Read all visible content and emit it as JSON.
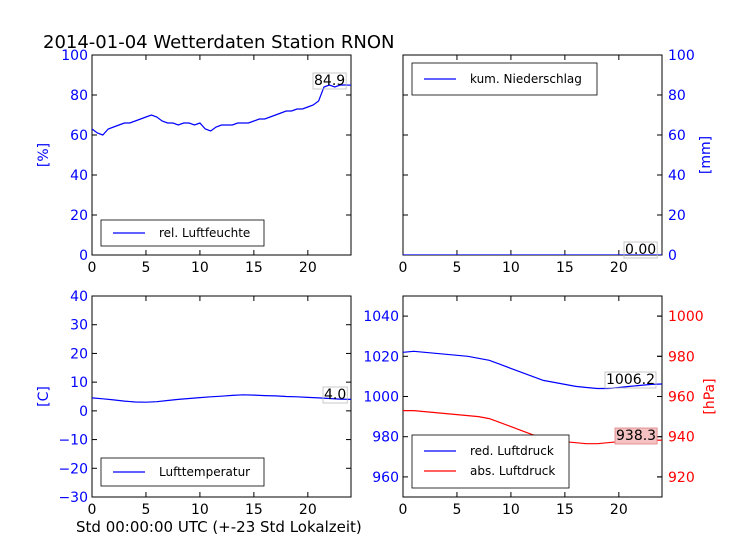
{
  "figure_title": "2014-01-04 Wetterdaten Station RNON",
  "xlabel_bottom": "Std 00:00:00 UTC (+-23 Std Lokalzeit)",
  "colors": {
    "blue": "#0000ff",
    "red": "#ff0000",
    "black": "#000000"
  },
  "chart_data": [
    {
      "id": "humidity",
      "type": "line",
      "xlim": [
        0,
        24
      ],
      "ylim": [
        0,
        100
      ],
      "xticks": [
        0,
        5,
        10,
        15,
        20
      ],
      "yticks": [
        0,
        20,
        40,
        60,
        80,
        100
      ],
      "ylabel": "[%]",
      "ylabel_side": "left",
      "legend_placement": "lower-left",
      "series": [
        {
          "name": "rel. Luftfeuchte",
          "color": "#0000ff",
          "x": [
            0,
            0.5,
            1,
            1.5,
            2,
            2.5,
            3,
            3.5,
            4,
            4.5,
            5,
            5.5,
            6,
            6.5,
            7,
            7.5,
            8,
            8.5,
            9,
            9.5,
            10,
            10.5,
            11,
            11.5,
            12,
            12.5,
            13,
            13.5,
            14,
            14.5,
            15,
            15.5,
            16,
            16.5,
            17,
            17.5,
            18,
            18.5,
            19,
            19.5,
            20,
            20.5,
            21,
            21.5,
            22,
            22.5,
            23,
            23.5,
            24
          ],
          "y": [
            63,
            61,
            60,
            63,
            64,
            65,
            66,
            66,
            67,
            68,
            69,
            70,
            69,
            67,
            66,
            66,
            65,
            66,
            66,
            65,
            66,
            63,
            62,
            64,
            65,
            65,
            65,
            66,
            66,
            66,
            67,
            68,
            68,
            69,
            70,
            71,
            72,
            72,
            73,
            73,
            74,
            75,
            77,
            84,
            85,
            84,
            85,
            85,
            84.9
          ]
        }
      ],
      "annotation": "84.9"
    },
    {
      "id": "precipitation",
      "type": "line",
      "xlim": [
        0,
        24
      ],
      "ylim": [
        0,
        100
      ],
      "xticks": [
        0,
        5,
        10,
        15,
        20
      ],
      "yticks": [
        0,
        20,
        40,
        60,
        80,
        100
      ],
      "ylabel": "[mm]",
      "ylabel_side": "right",
      "legend_placement": "upper-left",
      "series": [
        {
          "name": "kum. Niederschlag",
          "color": "#0000ff",
          "x": [
            0,
            24
          ],
          "y": [
            0,
            0
          ]
        }
      ],
      "annotation": "0.00"
    },
    {
      "id": "temperature",
      "type": "line",
      "xlim": [
        0,
        24
      ],
      "ylim": [
        -30,
        40
      ],
      "xticks": [
        0,
        5,
        10,
        15,
        20
      ],
      "yticks": [
        -30,
        -20,
        -10,
        0,
        10,
        20,
        30,
        40
      ],
      "ylabel": "[C]",
      "ylabel_side": "left",
      "legend_placement": "lower-left",
      "series": [
        {
          "name": "Lufttemperatur",
          "color": "#0000ff",
          "x": [
            0,
            1,
            2,
            3,
            4,
            5,
            6,
            7,
            8,
            9,
            10,
            11,
            12,
            13,
            14,
            15,
            16,
            17,
            18,
            19,
            20,
            21,
            22,
            23,
            24
          ],
          "y": [
            4.5,
            4.2,
            3.8,
            3.4,
            3.1,
            3.0,
            3.2,
            3.6,
            4.0,
            4.3,
            4.6,
            4.9,
            5.1,
            5.4,
            5.6,
            5.5,
            5.3,
            5.2,
            5.0,
            4.9,
            4.7,
            4.5,
            4.3,
            4.1,
            4.0
          ]
        }
      ],
      "annotation": "4.0"
    },
    {
      "id": "pressure",
      "type": "line",
      "xlim": [
        0,
        24
      ],
      "ylim": [
        950,
        1050
      ],
      "ylim_right": [
        910,
        1010
      ],
      "xticks": [
        0,
        5,
        10,
        15,
        20
      ],
      "yticks": [
        960,
        980,
        1000,
        1020,
        1040
      ],
      "yticks_right": [
        920,
        940,
        960,
        980,
        1000
      ],
      "ylabel_right": "[hPa]",
      "legend_placement": "lower-left",
      "series": [
        {
          "name": "red. Luftdruck",
          "color": "#0000ff",
          "axis": "left",
          "x": [
            0,
            1,
            2,
            3,
            4,
            5,
            6,
            7,
            8,
            9,
            10,
            11,
            12,
            13,
            14,
            15,
            16,
            17,
            18,
            19,
            20,
            21,
            22,
            23,
            24
          ],
          "y": [
            1022,
            1022.5,
            1022,
            1021.5,
            1021,
            1020.5,
            1020,
            1019,
            1018,
            1016,
            1014,
            1012,
            1010,
            1008,
            1007,
            1006,
            1005,
            1004.5,
            1004,
            1004,
            1004.5,
            1005,
            1005.5,
            1006,
            1006.2
          ]
        },
        {
          "name": "abs. Luftdruck",
          "color": "#ff0000",
          "axis": "right",
          "x": [
            0,
            1,
            2,
            3,
            4,
            5,
            6,
            7,
            8,
            9,
            10,
            11,
            12,
            13,
            14,
            15,
            16,
            17,
            18,
            19,
            20,
            21,
            22,
            23,
            24
          ],
          "y": [
            953,
            953,
            952.5,
            952,
            951.5,
            951,
            950.5,
            950,
            949,
            947,
            945,
            943,
            941,
            939.5,
            938.5,
            937.5,
            937,
            936.5,
            936.5,
            937,
            937.5,
            938,
            938,
            938.2,
            938.3
          ]
        }
      ],
      "annotation": "1006.2",
      "annotation_right": "938.3"
    }
  ]
}
